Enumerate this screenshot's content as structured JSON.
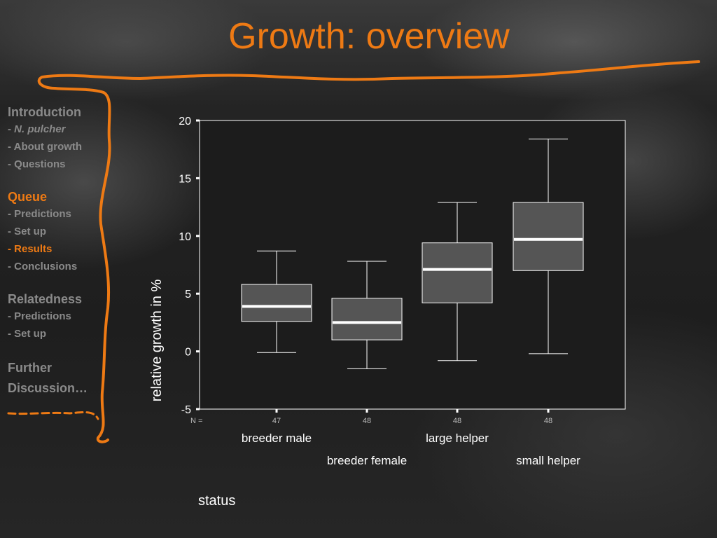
{
  "slide": {
    "title": "Growth: overview"
  },
  "nav": {
    "introduction": "Introduction",
    "intro_items": {
      "species_dash": "- ",
      "species": "N. pulcher",
      "about_growth": "- About growth",
      "questions": "- Questions"
    },
    "queue": "Queue",
    "queue_items": {
      "predictions": "- Predictions",
      "set_up": "- Set up",
      "results": "- Results",
      "conclusions": "- Conclusions"
    },
    "relatedness": "Relatedness",
    "relatedness_items": {
      "predictions": "- Predictions",
      "set_up": "- Set up"
    },
    "further": "Further",
    "discussion": "Discussion…"
  },
  "colors": {
    "accent": "#ee7a14",
    "nav_text": "#8a8a8a",
    "box_fill": "#555555",
    "median": "#ffffff",
    "plot_bg": "#1c1c1c"
  },
  "chart_data": {
    "type": "boxplot",
    "ylabel": "relative growth in %",
    "xlabel": "status",
    "ylim": [
      -5,
      20
    ],
    "yticks": [
      -5,
      0,
      5,
      10,
      15,
      20
    ],
    "n_label": "N =",
    "categories": [
      "breeder male",
      "breeder female",
      "large helper",
      "small  helper"
    ],
    "n": [
      "47",
      "48",
      "48",
      "48"
    ],
    "boxes": [
      {
        "whisker_low": -0.1,
        "q1": 2.6,
        "median": 3.9,
        "q3": 5.8,
        "whisker_high": 8.7
      },
      {
        "whisker_low": -1.5,
        "q1": 1.0,
        "median": 2.5,
        "q3": 4.6,
        "whisker_high": 7.8
      },
      {
        "whisker_low": -0.8,
        "q1": 4.2,
        "median": 7.1,
        "q3": 9.4,
        "whisker_high": 12.9
      },
      {
        "whisker_low": -0.2,
        "q1": 7.0,
        "median": 9.7,
        "q3": 12.9,
        "whisker_high": 18.4
      }
    ]
  }
}
